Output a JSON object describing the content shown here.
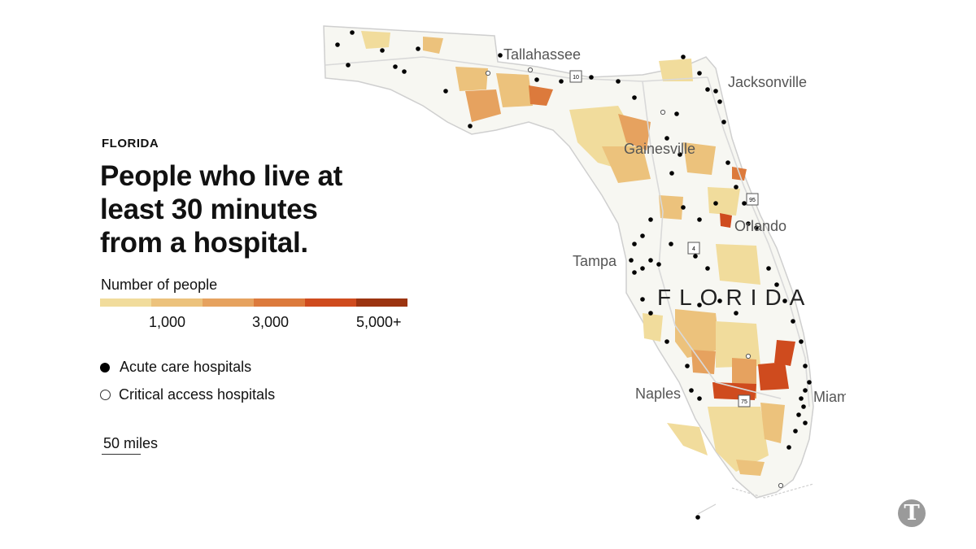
{
  "kicker": "FLORIDA",
  "headline": "People who live at least 30 minutes from a hospital.",
  "legend": {
    "title": "Number of people",
    "colors": [
      "#f1dc9c",
      "#ecc27c",
      "#e6a25f",
      "#dc7a3c",
      "#cf4b1e",
      "#9c3410"
    ],
    "ticks": [
      "1,000",
      "3,000",
      "5,000+"
    ]
  },
  "symbols": {
    "acute": "Acute care hospitals",
    "critical": "Critical access hospitals"
  },
  "scale_label": "50 miles",
  "map": {
    "state_label": "FLORIDA",
    "cities": [
      "Tallahassee",
      "Jacksonville",
      "Gainesville",
      "Orlando",
      "Tampa",
      "Naples",
      "Miami"
    ],
    "shields": [
      "10",
      "95",
      "4",
      "75"
    ]
  },
  "logo": "T"
}
